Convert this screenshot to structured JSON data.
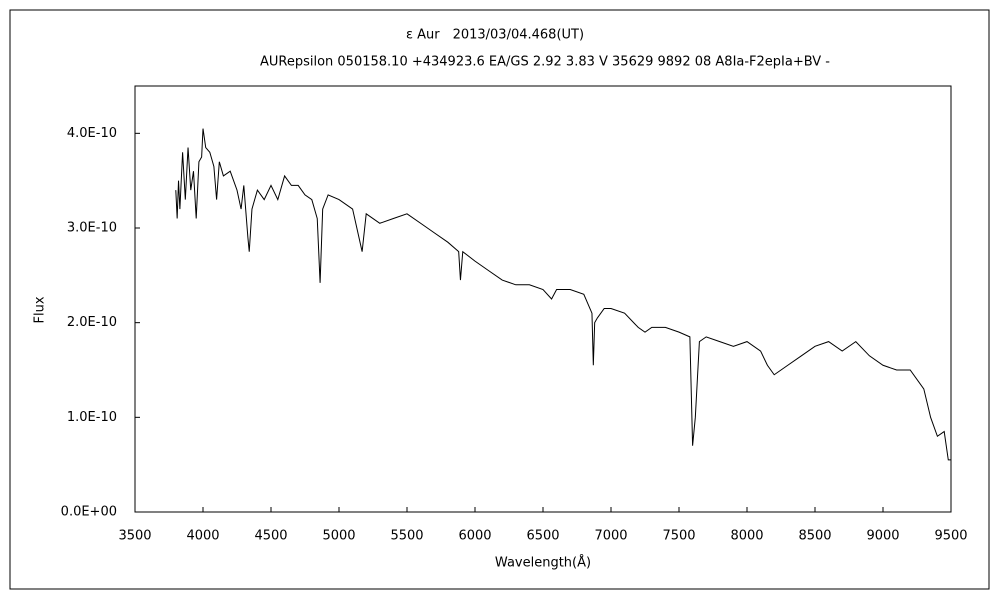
{
  "chart_data": {
    "type": "line",
    "title": "ε Aur　2013/03/04.468(UT)",
    "subtitle": "AURepsilon 050158.10 +434923.6 EA/GS 2.92 3.83 V 35629 9892 08 A8Ia-F2epIa+BV -",
    "x_label": "Wavelength(Å)",
    "y_label": "Flux",
    "xlim": [
      3500,
      9500
    ],
    "xticks": [
      3500,
      4000,
      4500,
      5000,
      5500,
      6000,
      6500,
      7000,
      7500,
      8000,
      8500,
      9000,
      9500
    ],
    "ylim": [
      0,
      4.5e-10
    ],
    "yticks": [
      {
        "value": 0,
        "label": "0.0E+00"
      },
      {
        "value": 1e-10,
        "label": "1.0E-10"
      },
      {
        "value": 2e-10,
        "label": "2.0E-10"
      },
      {
        "value": 3e-10,
        "label": "3.0E-10"
      },
      {
        "value": 4e-10,
        "label": "4.0E-10"
      }
    ],
    "grid": false,
    "x": [
      3800,
      3810,
      3820,
      3830,
      3850,
      3870,
      3890,
      3910,
      3930,
      3950,
      3970,
      3990,
      4000,
      4020,
      4050,
      4080,
      4100,
      4120,
      4150,
      4200,
      4250,
      4280,
      4300,
      4330,
      4340,
      4360,
      4400,
      4450,
      4500,
      4550,
      4600,
      4650,
      4700,
      4750,
      4800,
      4840,
      4861,
      4880,
      4920,
      5000,
      5100,
      5170,
      5200,
      5300,
      5400,
      5500,
      5600,
      5700,
      5800,
      5880,
      5893,
      5910,
      6000,
      6100,
      6200,
      6300,
      6400,
      6500,
      6563,
      6600,
      6700,
      6800,
      6860,
      6870,
      6880,
      6900,
      6950,
      7000,
      7100,
      7200,
      7250,
      7300,
      7400,
      7500,
      7580,
      7600,
      7620,
      7650,
      7700,
      7800,
      7900,
      8000,
      8100,
      8150,
      8200,
      8250,
      8300,
      8400,
      8500,
      8600,
      8700,
      8800,
      8900,
      9000,
      9100,
      9200,
      9300,
      9350,
      9400,
      9450,
      9480,
      9500
    ],
    "series": [
      {
        "name": "Flux",
        "color": "#000000",
        "values": [
          3.4e-10,
          3.1e-10,
          3.5e-10,
          3.2e-10,
          3.8e-10,
          3.3e-10,
          3.85e-10,
          3.4e-10,
          3.6e-10,
          3.1e-10,
          3.7e-10,
          3.75e-10,
          4.05e-10,
          3.85e-10,
          3.8e-10,
          3.65e-10,
          3.3e-10,
          3.7e-10,
          3.55e-10,
          3.6e-10,
          3.4e-10,
          3.2e-10,
          3.45e-10,
          2.9e-10,
          2.75e-10,
          3.2e-10,
          3.4e-10,
          3.3e-10,
          3.45e-10,
          3.3e-10,
          3.55e-10,
          3.45e-10,
          3.45e-10,
          3.35e-10,
          3.3e-10,
          3.1e-10,
          2.42e-10,
          3.2e-10,
          3.35e-10,
          3.3e-10,
          3.2e-10,
          2.75e-10,
          3.15e-10,
          3.05e-10,
          3.1e-10,
          3.15e-10,
          3.05e-10,
          2.95e-10,
          2.85e-10,
          2.75e-10,
          2.45e-10,
          2.75e-10,
          2.65e-10,
          2.55e-10,
          2.45e-10,
          2.4e-10,
          2.4e-10,
          2.35e-10,
          2.25e-10,
          2.35e-10,
          2.35e-10,
          2.3e-10,
          2.1e-10,
          1.55e-10,
          2e-10,
          2.05e-10,
          2.15e-10,
          2.15e-10,
          2.1e-10,
          1.95e-10,
          1.9e-10,
          1.95e-10,
          1.95e-10,
          1.9e-10,
          1.85e-10,
          7e-11,
          1e-10,
          1.8e-10,
          1.85e-10,
          1.8e-10,
          1.75e-10,
          1.8e-10,
          1.7e-10,
          1.55e-10,
          1.45e-10,
          1.5e-10,
          1.55e-10,
          1.65e-10,
          1.75e-10,
          1.8e-10,
          1.7e-10,
          1.8e-10,
          1.65e-10,
          1.55e-10,
          1.5e-10,
          1.5e-10,
          1.3e-10,
          1e-10,
          8e-11,
          8.5e-11,
          5.5e-11,
          5.5e-11
        ]
      }
    ]
  }
}
